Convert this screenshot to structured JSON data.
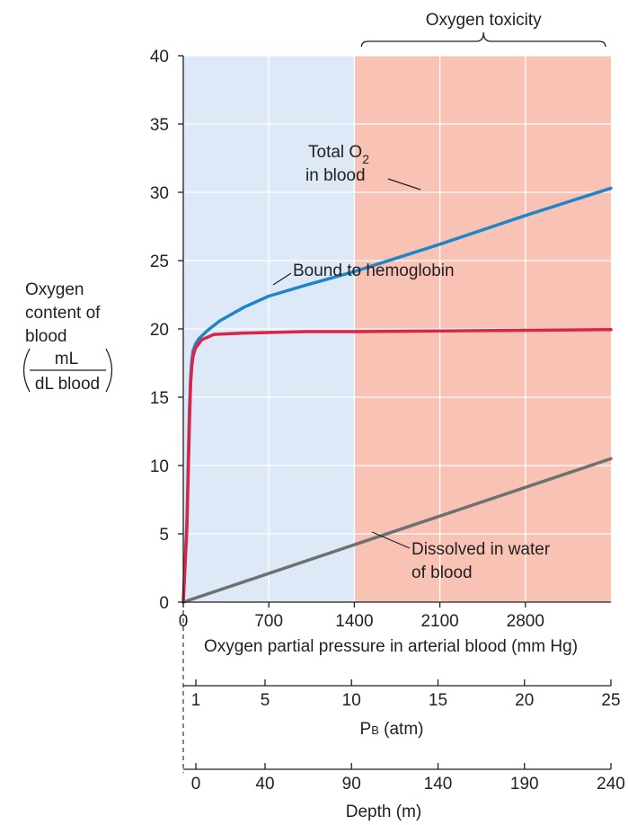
{
  "chart_data": {
    "type": "line",
    "xlabel": "Oxygen partial pressure in arterial blood (mm Hg)",
    "ylabel": {
      "line1": "Oxygen",
      "line2": "content of",
      "line3": "blood",
      "frac_num": "mL",
      "frac_den": "dL blood"
    },
    "xlim": [
      0,
      3500
    ],
    "ylim": [
      0,
      40
    ],
    "x_ticks": [
      0,
      700,
      1400,
      2100,
      2800
    ],
    "y_ticks": [
      0,
      5,
      10,
      15,
      20,
      25,
      30,
      35,
      40
    ],
    "grid": true,
    "regions": [
      {
        "name": "normal",
        "from": 0,
        "to": 1400,
        "color": "#dde9f6"
      },
      {
        "name": "Oxygen toxicity",
        "from": 1400,
        "to": 3500,
        "color": "#f8c3b5"
      }
    ],
    "series": [
      {
        "name": "Total O2 in blood",
        "color": "#1e85c6",
        "points": [
          [
            0,
            0
          ],
          [
            30,
            6
          ],
          [
            50,
            14
          ],
          [
            60,
            16.5
          ],
          [
            70,
            17.7
          ],
          [
            80,
            18.4
          ],
          [
            100,
            18.9
          ],
          [
            130,
            19.3
          ],
          [
            200,
            19.9
          ],
          [
            300,
            20.6
          ],
          [
            500,
            21.6
          ],
          [
            700,
            22.4
          ],
          [
            1000,
            23.2
          ],
          [
            1400,
            24.2
          ],
          [
            2100,
            26.2
          ],
          [
            2800,
            28.3
          ],
          [
            3500,
            30.3
          ]
        ]
      },
      {
        "name": "Bound to hemoglobin",
        "color": "#dc2448",
        "points": [
          [
            0,
            0
          ],
          [
            30,
            5.5
          ],
          [
            50,
            13
          ],
          [
            60,
            16
          ],
          [
            70,
            17.3
          ],
          [
            80,
            18
          ],
          [
            100,
            18.6
          ],
          [
            150,
            19.2
          ],
          [
            250,
            19.6
          ],
          [
            500,
            19.7
          ],
          [
            1000,
            19.8
          ],
          [
            1400,
            19.8
          ],
          [
            2100,
            19.85
          ],
          [
            2800,
            19.9
          ],
          [
            3500,
            19.95
          ]
        ]
      },
      {
        "name": "Dissolved in water of blood",
        "color": "#707071",
        "points": [
          [
            0,
            0
          ],
          [
            3500,
            10.5
          ]
        ]
      }
    ],
    "annotations": {
      "toxicity_label": "Oxygen toxicity",
      "total_line1": "Total O",
      "total_sub": "2",
      "total_line2": "in blood",
      "hemoglobin": "Bound to hemoglobin",
      "dissolved_line1": "Dissolved in water",
      "dissolved_line2": "of blood"
    },
    "secondary_axes": [
      {
        "label": "PB (atm)",
        "label_main": "P",
        "label_sub": "B",
        "label_rest": " (atm)",
        "ticks": [
          1,
          5,
          10,
          15,
          20,
          25
        ]
      },
      {
        "label": "Depth (m)",
        "ticks": [
          0,
          40,
          90,
          140,
          190,
          240
        ]
      }
    ]
  }
}
